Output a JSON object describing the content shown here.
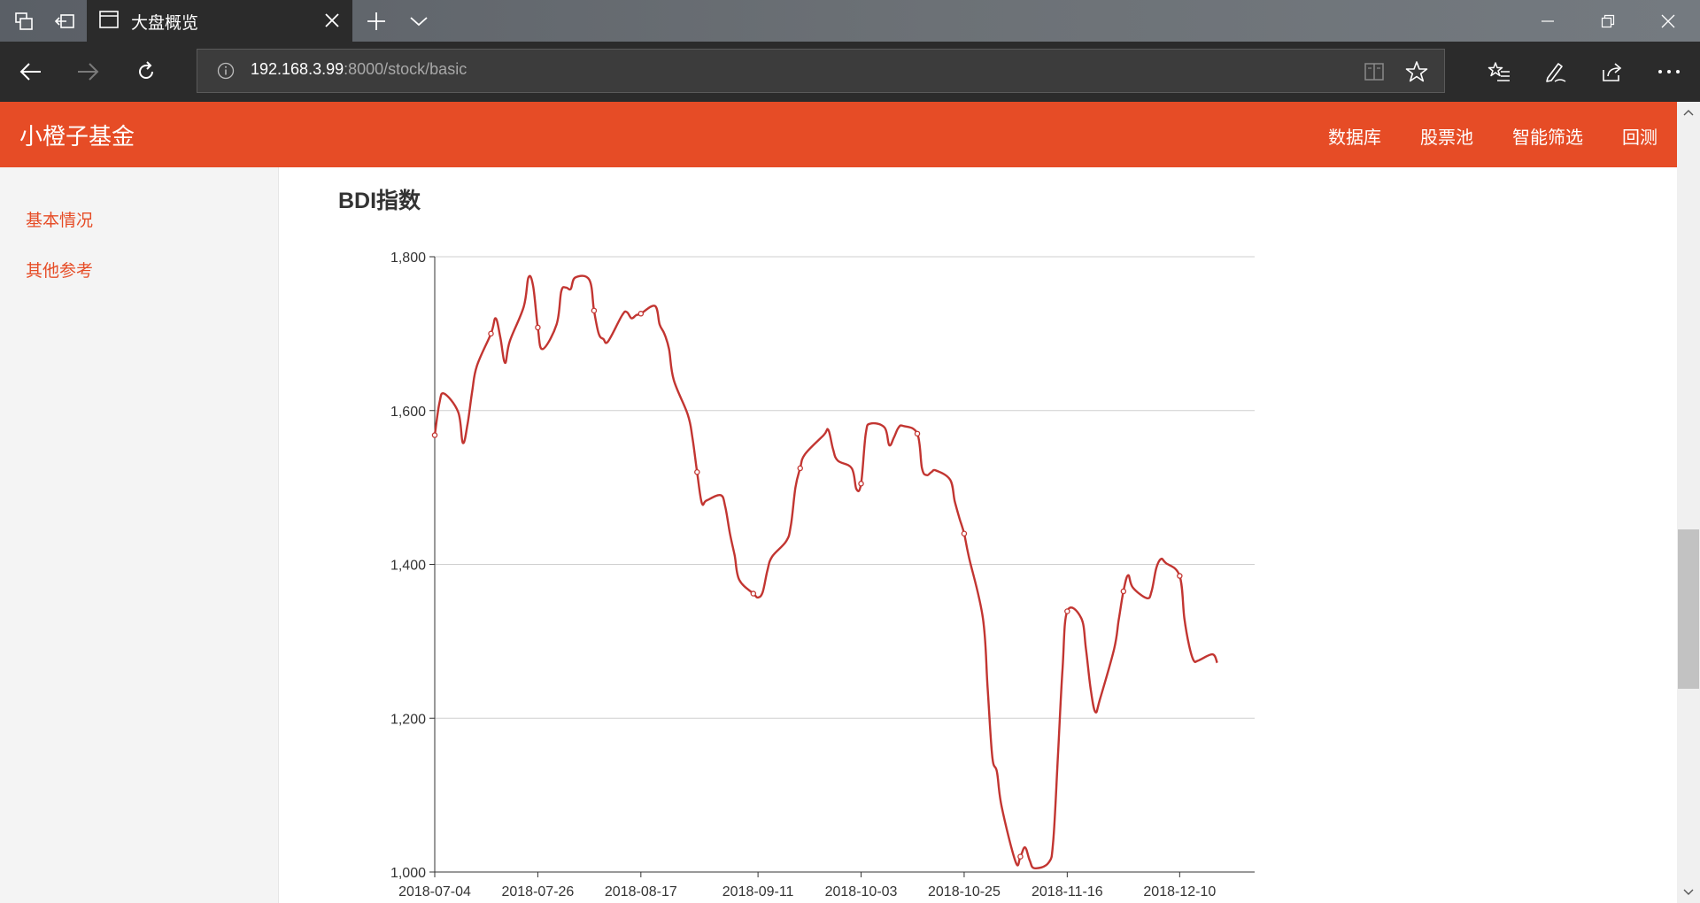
{
  "browser": {
    "tab_title": "大盘概览",
    "url_host": "192.168.3.99",
    "url_rest": ":8000/stock/basic"
  },
  "app": {
    "brand": "小橙子基金",
    "nav": [
      "数据库",
      "股票池",
      "智能筛选",
      "回测"
    ]
  },
  "sidebar": {
    "items": [
      {
        "label": "基本情况"
      },
      {
        "label": "其他参考"
      }
    ]
  },
  "colors": {
    "accent": "#e64c26",
    "line": "#c23531"
  },
  "icons": {
    "tab_manager": "tab-manager-icon",
    "set_aside": "set-aside-tabs-icon",
    "page": "page-icon",
    "close": "close-icon",
    "new_tab": "plus-icon",
    "tab_list": "chevron-down-icon",
    "back": "arrow-left-icon",
    "forward": "arrow-right-icon",
    "refresh": "refresh-icon",
    "info": "info-icon",
    "reading_view": "book-icon",
    "favorite": "star-icon",
    "favorites_hub": "favorites-list-icon",
    "notes": "pen-icon",
    "share": "share-icon",
    "more": "more-icon"
  },
  "chart_data": {
    "type": "line",
    "title": "BDI指数",
    "x_tick_labels": [
      "2018-07-04",
      "2018-07-26",
      "2018-08-17",
      "2018-09-11",
      "2018-10-03",
      "2018-10-25",
      "2018-11-16",
      "2018-12-10"
    ],
    "y_tick_labels": [
      "1,000",
      "1,200",
      "1,400",
      "1,600",
      "1,800"
    ],
    "ylim": [
      1000,
      1800
    ],
    "xlim": [
      "2018-07-04",
      "2018-12-26"
    ],
    "grid": "horizontal",
    "series": [
      {
        "points": [
          [
            "2018-07-04",
            1568
          ],
          [
            "2018-07-05",
            1610
          ],
          [
            "2018-07-06",
            1622
          ],
          [
            "2018-07-09",
            1598
          ],
          [
            "2018-07-10",
            1558
          ],
          [
            "2018-07-11",
            1582
          ],
          [
            "2018-07-12",
            1625
          ],
          [
            "2018-07-13",
            1658
          ],
          [
            "2018-07-16",
            1700
          ],
          [
            "2018-07-17",
            1720
          ],
          [
            "2018-07-18",
            1695
          ],
          [
            "2018-07-19",
            1662
          ],
          [
            "2018-07-20",
            1690
          ],
          [
            "2018-07-23",
            1735
          ],
          [
            "2018-07-24",
            1773
          ],
          [
            "2018-07-25",
            1762
          ],
          [
            "2018-07-26",
            1708
          ],
          [
            "2018-07-27",
            1680
          ],
          [
            "2018-07-30",
            1712
          ],
          [
            "2018-07-31",
            1755
          ],
          [
            "2018-08-01",
            1760
          ],
          [
            "2018-08-02",
            1758
          ],
          [
            "2018-08-03",
            1773
          ],
          [
            "2018-08-06",
            1770
          ],
          [
            "2018-08-07",
            1730
          ],
          [
            "2018-08-08",
            1700
          ],
          [
            "2018-08-09",
            1693
          ],
          [
            "2018-08-10",
            1690
          ],
          [
            "2018-08-13",
            1724
          ],
          [
            "2018-08-14",
            1728
          ],
          [
            "2018-08-15",
            1720
          ],
          [
            "2018-08-16",
            1724
          ],
          [
            "2018-08-17",
            1726
          ],
          [
            "2018-08-20",
            1736
          ],
          [
            "2018-08-21",
            1712
          ],
          [
            "2018-08-22",
            1700
          ],
          [
            "2018-08-23",
            1680
          ],
          [
            "2018-08-24",
            1640
          ],
          [
            "2018-08-27",
            1595
          ],
          [
            "2018-08-28",
            1565
          ],
          [
            "2018-08-29",
            1520
          ],
          [
            "2018-08-30",
            1480
          ],
          [
            "2018-08-31",
            1483
          ],
          [
            "2018-09-03",
            1490
          ],
          [
            "2018-09-04",
            1475
          ],
          [
            "2018-09-05",
            1440
          ],
          [
            "2018-09-06",
            1412
          ],
          [
            "2018-09-07",
            1380
          ],
          [
            "2018-09-10",
            1362
          ],
          [
            "2018-09-11",
            1357
          ],
          [
            "2018-09-12",
            1364
          ],
          [
            "2018-09-13",
            1392
          ],
          [
            "2018-09-14",
            1410
          ],
          [
            "2018-09-17",
            1430
          ],
          [
            "2018-09-18",
            1450
          ],
          [
            "2018-09-19",
            1500
          ],
          [
            "2018-09-20",
            1525
          ],
          [
            "2018-09-21",
            1543
          ],
          [
            "2018-09-25",
            1568
          ],
          [
            "2018-09-26",
            1575
          ],
          [
            "2018-09-27",
            1550
          ],
          [
            "2018-09-28",
            1535
          ],
          [
            "2018-10-01",
            1525
          ],
          [
            "2018-10-02",
            1498
          ],
          [
            "2018-10-03",
            1505
          ],
          [
            "2018-10-04",
            1570
          ],
          [
            "2018-10-05",
            1583
          ],
          [
            "2018-10-08",
            1578
          ],
          [
            "2018-10-09",
            1555
          ],
          [
            "2018-10-10",
            1565
          ],
          [
            "2018-10-11",
            1578
          ],
          [
            "2018-10-12",
            1580
          ],
          [
            "2018-10-15",
            1570
          ],
          [
            "2018-10-16",
            1525
          ],
          [
            "2018-10-17",
            1516
          ],
          [
            "2018-10-18",
            1520
          ],
          [
            "2018-10-19",
            1522
          ],
          [
            "2018-10-22",
            1510
          ],
          [
            "2018-10-23",
            1482
          ],
          [
            "2018-10-24",
            1460
          ],
          [
            "2018-10-25",
            1440
          ],
          [
            "2018-10-26",
            1410
          ],
          [
            "2018-10-29",
            1330
          ],
          [
            "2018-10-30",
            1240
          ],
          [
            "2018-10-31",
            1150
          ],
          [
            "2018-11-01",
            1130
          ],
          [
            "2018-11-02",
            1085
          ],
          [
            "2018-11-05",
            1013
          ],
          [
            "2018-11-06",
            1020
          ],
          [
            "2018-11-07",
            1032
          ],
          [
            "2018-11-08",
            1015
          ],
          [
            "2018-11-09",
            1005
          ],
          [
            "2018-11-12",
            1012
          ],
          [
            "2018-11-13",
            1040
          ],
          [
            "2018-11-14",
            1150
          ],
          [
            "2018-11-15",
            1265
          ],
          [
            "2018-11-16",
            1339
          ],
          [
            "2018-11-19",
            1330
          ],
          [
            "2018-11-20",
            1290
          ],
          [
            "2018-11-21",
            1238
          ],
          [
            "2018-11-22",
            1208
          ],
          [
            "2018-11-23",
            1225
          ],
          [
            "2018-11-26",
            1290
          ],
          [
            "2018-11-27",
            1328
          ],
          [
            "2018-11-28",
            1365
          ],
          [
            "2018-11-29",
            1386
          ],
          [
            "2018-11-30",
            1370
          ],
          [
            "2018-12-03",
            1356
          ],
          [
            "2018-12-04",
            1365
          ],
          [
            "2018-12-05",
            1395
          ],
          [
            "2018-12-06",
            1407
          ],
          [
            "2018-12-07",
            1402
          ],
          [
            "2018-12-10",
            1385
          ],
          [
            "2018-12-11",
            1330
          ],
          [
            "2018-12-12",
            1295
          ],
          [
            "2018-12-13",
            1275
          ],
          [
            "2018-12-14",
            1275
          ],
          [
            "2018-12-17",
            1283
          ],
          [
            "2018-12-18",
            1272
          ]
        ]
      }
    ]
  }
}
